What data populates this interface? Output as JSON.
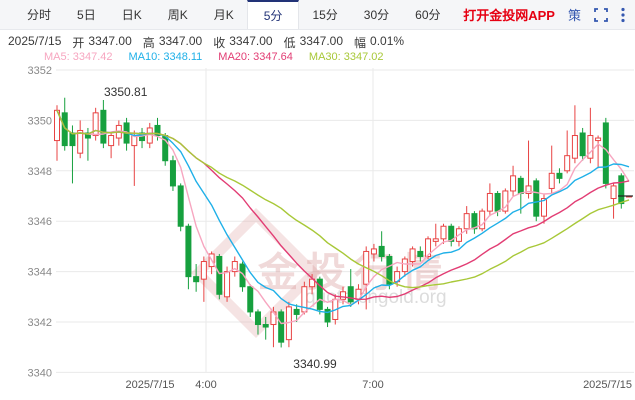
{
  "tabs": {
    "items": [
      {
        "label": "分时",
        "selected": false
      },
      {
        "label": "5日",
        "selected": false
      },
      {
        "label": "日K",
        "selected": false
      },
      {
        "label": "周K",
        "selected": false
      },
      {
        "label": "月K",
        "selected": false
      },
      {
        "label": "5分",
        "selected": true
      },
      {
        "label": "15分",
        "selected": false
      },
      {
        "label": "30分",
        "selected": false
      },
      {
        "label": "60分",
        "selected": false
      }
    ],
    "open_app_label": "打开金投网APP",
    "strategy_label": "策"
  },
  "quote_bar": {
    "date": "2025/7/15",
    "open_label": "开",
    "open": "3347.00",
    "high_label": "高",
    "high": "3347.00",
    "close_label": "收",
    "close": "3347.00",
    "low_label": "低",
    "low": "3347.00",
    "range_label": "幅",
    "range": "0.01%"
  },
  "ma_bar": {
    "ma5": "MA5: 3347.42",
    "ma10": "MA10: 3348.11",
    "ma20": "MA20: 3347.64",
    "ma30": "MA30: 3347.02"
  },
  "watermark": {
    "text": "金投行情",
    "subtext": "quote.cngold.org"
  },
  "chart_data": {
    "type": "candlestick",
    "interval": "5分",
    "title": "",
    "ylim": [
      3339.5,
      3352.3
    ],
    "y_ticks": [
      3352,
      3350,
      3348,
      3346,
      3344,
      3342,
      3340
    ],
    "x_ticks": [
      {
        "label": "2025/7/15",
        "x": 150,
        "anchor": "middle",
        "grid": false
      },
      {
        "label": "4:00",
        "x": 206,
        "anchor": "middle",
        "grid": true
      },
      {
        "label": "7:00",
        "x": 373,
        "anchor": "middle",
        "grid": true
      },
      {
        "label": "2025/7/15",
        "x": 632,
        "anchor": "end",
        "grid": false
      }
    ],
    "high_annotation": {
      "text": "3350.81",
      "x": 104,
      "y": 96
    },
    "low_annotation": {
      "text": "3340.99",
      "x": 315,
      "y": 368
    },
    "current_price": 3347.0,
    "ma_periods": [
      5,
      10,
      20,
      30
    ],
    "colors": {
      "up": "#e84343",
      "down": "#16a03e",
      "ma5": "#f7a6c0",
      "ma10": "#1fb0e8",
      "ma20": "#e23d74",
      "ma30": "#a8c838",
      "grid": "#eaeaea",
      "axis_text": "#888",
      "annotation": "#333",
      "price_tick": "#222"
    },
    "candles": [
      [
        3349.2,
        3350.6,
        3348.4,
        3350.4
      ],
      [
        3350.3,
        3350.9,
        3348.8,
        3349.0
      ],
      [
        3349.5,
        3349.8,
        3347.5,
        3349.0
      ],
      [
        3348.7,
        3350.0,
        3348.5,
        3349.6
      ],
      [
        3349.5,
        3349.7,
        3348.4,
        3349.3
      ],
      [
        3349.4,
        3350.5,
        3349.2,
        3350.3
      ],
      [
        3350.4,
        3350.81,
        3348.9,
        3349.1
      ],
      [
        3349.0,
        3349.5,
        3348.5,
        3349.4
      ],
      [
        3349.3,
        3350.0,
        3349.0,
        3349.8
      ],
      [
        3349.9,
        3350.1,
        3348.8,
        3349.1
      ],
      [
        3349.0,
        3349.6,
        3347.4,
        3349.4
      ],
      [
        3349.5,
        3349.7,
        3348.9,
        3349.2
      ],
      [
        3349.1,
        3349.9,
        3348.9,
        3349.7
      ],
      [
        3349.8,
        3350.1,
        3349.2,
        3349.4
      ],
      [
        3349.4,
        3349.5,
        3348.2,
        3348.4
      ],
      [
        3348.4,
        3348.6,
        3347.2,
        3347.4
      ],
      [
        3347.4,
        3347.5,
        3345.6,
        3345.8
      ],
      [
        3345.8,
        3345.9,
        3343.3,
        3343.8
      ],
      [
        3343.8,
        3344.3,
        3343.2,
        3343.6
      ],
      [
        3343.7,
        3344.6,
        3342.8,
        3344.4
      ],
      [
        3344.2,
        3344.8,
        3343.9,
        3344.7
      ],
      [
        3344.6,
        3344.7,
        3342.9,
        3343.1
      ],
      [
        3343.0,
        3344.2,
        3342.8,
        3344.0
      ],
      [
        3344.0,
        3344.6,
        3343.8,
        3344.4
      ],
      [
        3344.3,
        3344.4,
        3343.2,
        3343.4
      ],
      [
        3343.4,
        3343.5,
        3342.2,
        3342.4
      ],
      [
        3342.4,
        3342.5,
        3341.5,
        3341.9
      ],
      [
        3341.9,
        3342.2,
        3341.3,
        3341.8
      ],
      [
        3341.9,
        3342.6,
        3341.0,
        3342.4
      ],
      [
        3342.4,
        3342.5,
        3340.99,
        3341.2
      ],
      [
        3341.3,
        3342.8,
        3341.0,
        3342.6
      ],
      [
        3342.5,
        3342.7,
        3342.0,
        3342.3
      ],
      [
        3342.4,
        3343.6,
        3342.3,
        3343.4
      ],
      [
        3343.4,
        3343.9,
        3343.1,
        3343.7
      ],
      [
        3343.7,
        3343.8,
        3342.3,
        3342.5
      ],
      [
        3342.5,
        3342.6,
        3341.8,
        3342.0
      ],
      [
        3342.1,
        3343.1,
        3341.9,
        3342.9
      ],
      [
        3342.9,
        3343.4,
        3342.7,
        3343.2
      ],
      [
        3343.4,
        3344.1,
        3342.6,
        3342.8
      ],
      [
        3342.9,
        3343.5,
        3342.7,
        3343.3
      ],
      [
        3343.5,
        3345.0,
        3342.5,
        3344.8
      ],
      [
        3344.7,
        3345.1,
        3344.4,
        3344.9
      ],
      [
        3345.0,
        3345.6,
        3344.4,
        3344.6
      ],
      [
        3344.6,
        3344.7,
        3343.3,
        3343.5
      ],
      [
        3343.6,
        3344.2,
        3343.4,
        3344.0
      ],
      [
        3344.0,
        3344.6,
        3343.8,
        3344.5
      ],
      [
        3344.4,
        3345.0,
        3344.2,
        3344.9
      ],
      [
        3344.8,
        3345.0,
        3344.4,
        3344.6
      ],
      [
        3344.6,
        3345.4,
        3344.5,
        3345.3
      ],
      [
        3345.2,
        3345.9,
        3345.0,
        3345.3
      ],
      [
        3345.3,
        3345.9,
        3345.1,
        3345.8
      ],
      [
        3345.8,
        3345.9,
        3345.0,
        3345.2
      ],
      [
        3345.2,
        3345.8,
        3345.0,
        3345.7
      ],
      [
        3345.7,
        3346.6,
        3345.5,
        3346.3
      ],
      [
        3346.3,
        3346.4,
        3345.5,
        3345.7
      ],
      [
        3345.7,
        3346.5,
        3345.6,
        3346.4
      ],
      [
        3346.4,
        3347.5,
        3346.2,
        3347.1
      ],
      [
        3347.1,
        3347.2,
        3346.2,
        3346.4
      ],
      [
        3346.4,
        3347.3,
        3346.3,
        3347.2
      ],
      [
        3347.2,
        3348.2,
        3347.0,
        3347.8
      ],
      [
        3347.7,
        3347.8,
        3346.3,
        3347.1
      ],
      [
        3347.1,
        3349.2,
        3346.9,
        3347.4
      ],
      [
        3347.6,
        3347.7,
        3346.0,
        3346.2
      ],
      [
        3346.2,
        3347.1,
        3345.9,
        3346.9
      ],
      [
        3347.3,
        3349.0,
        3347.1,
        3347.9
      ],
      [
        3347.9,
        3348.1,
        3347.5,
        3347.7
      ],
      [
        3348.0,
        3349.6,
        3347.9,
        3348.6
      ],
      [
        3348.5,
        3350.6,
        3348.3,
        3349.4
      ],
      [
        3349.5,
        3349.7,
        3348.4,
        3348.6
      ],
      [
        3348.5,
        3350.5,
        3348.3,
        3349.4
      ],
      [
        3349.2,
        3349.4,
        3348.1,
        3349.3
      ],
      [
        3349.9,
        3350.1,
        3347.3,
        3347.5
      ],
      [
        3346.9,
        3347.5,
        3346.1,
        3347.4
      ],
      [
        3347.8,
        3347.9,
        3346.5,
        3346.7
      ],
      [
        3347.0,
        3347.0,
        3347.0,
        3347.0
      ]
    ]
  }
}
